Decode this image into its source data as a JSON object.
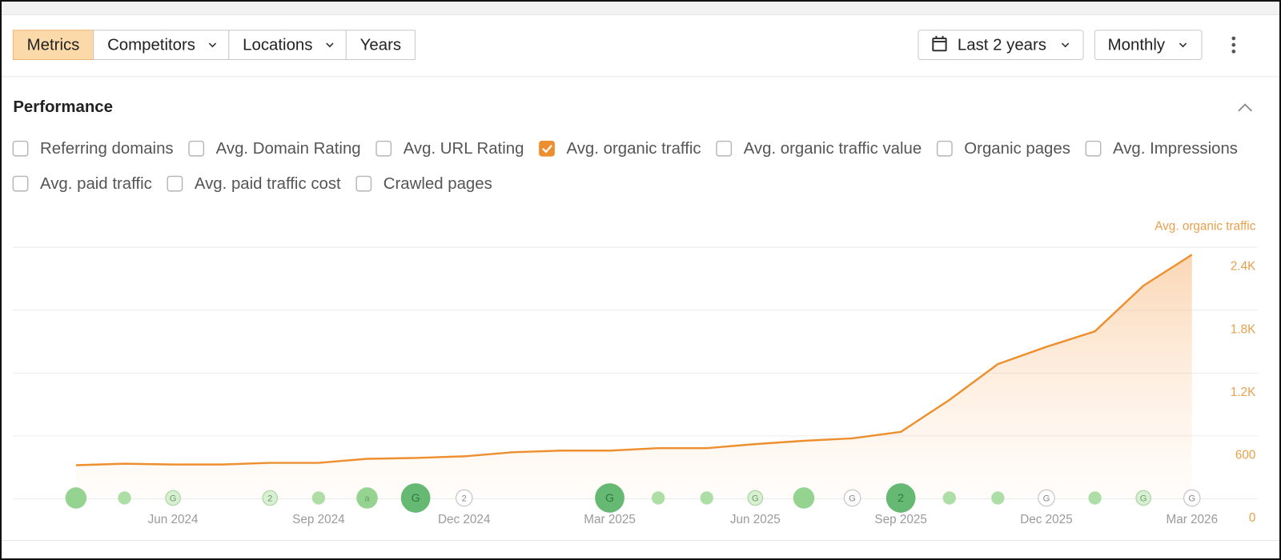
{
  "toolbar": {
    "tabs": [
      "Metrics",
      "Competitors",
      "Locations",
      "Years"
    ],
    "range": "Last 2 years",
    "interval": "Monthly"
  },
  "section": {
    "title": "Performance"
  },
  "metrics": [
    {
      "label": "Referring domains",
      "checked": false
    },
    {
      "label": "Avg. Domain Rating",
      "checked": false
    },
    {
      "label": "Avg. URL Rating",
      "checked": false
    },
    {
      "label": "Avg. organic traffic",
      "checked": true
    },
    {
      "label": "Avg. organic traffic value",
      "checked": false
    },
    {
      "label": "Organic pages",
      "checked": false
    },
    {
      "label": "Avg. Impressions",
      "checked": false
    },
    {
      "label": "Avg. paid traffic",
      "checked": false
    },
    {
      "label": "Avg. paid traffic cost",
      "checked": false
    },
    {
      "label": "Crawled pages",
      "checked": false
    }
  ],
  "chart_data": {
    "type": "line",
    "y_axis_label": "Avg. organic traffic",
    "categories": [
      null,
      null,
      "Jun 2024",
      null,
      null,
      "Sep 2024",
      null,
      null,
      "Dec 2024",
      null,
      null,
      "Mar 2025",
      null,
      null,
      "Jun 2025",
      null,
      null,
      "Sep 2025",
      null,
      null,
      "Dec 2025",
      null,
      null,
      "Mar 2026"
    ],
    "series": [
      {
        "name": "Avg. organic traffic",
        "color": "#ee8f2f",
        "values": [
          320,
          335,
          327,
          327,
          343,
          343,
          382,
          390,
          405,
          444,
          460,
          460,
          483,
          483,
          522,
          553,
          577,
          639,
          943,
          1286,
          1450,
          1598,
          2034,
          2330
        ]
      }
    ],
    "annotations": [
      null,
      null,
      "G",
      null,
      "2",
      null,
      "a",
      "G",
      "2",
      null,
      null,
      "G",
      null,
      null,
      "G",
      null,
      "G",
      "2",
      null,
      null,
      "G",
      null,
      "G",
      "G"
    ],
    "ylim": [
      0,
      2400
    ],
    "yticks": [
      0,
      600,
      {
        "value": 1200,
        "label": "1.2K"
      },
      {
        "value": 1800,
        "label": "1.8K"
      },
      {
        "value": 2400,
        "label": "2.4K"
      }
    ],
    "grid": true
  }
}
